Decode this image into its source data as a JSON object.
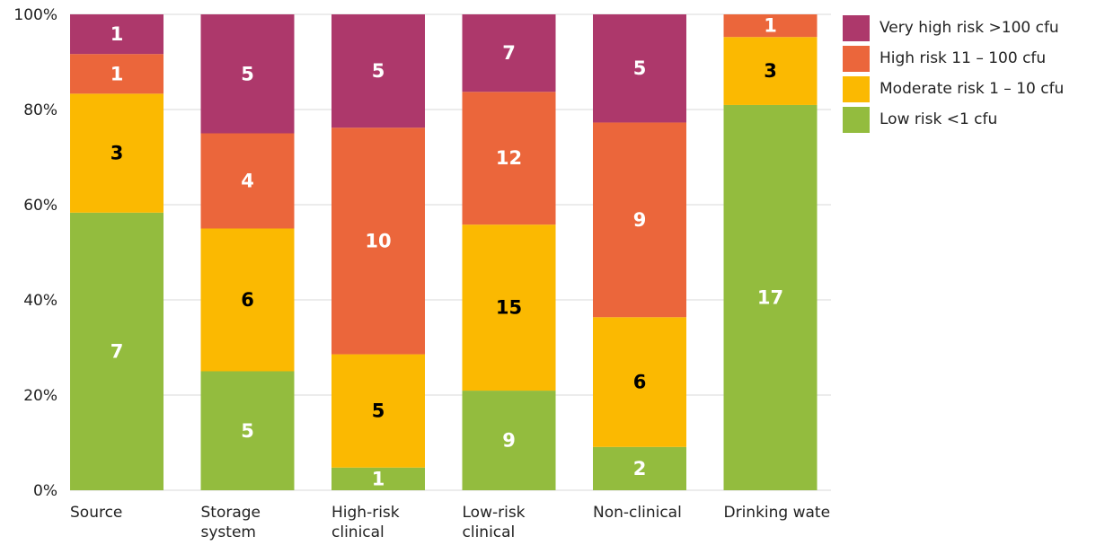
{
  "chart_data": {
    "type": "bar",
    "stacked": "percent",
    "categories": [
      [
        "Source"
      ],
      [
        "Storage",
        "system"
      ],
      [
        "High-risk",
        "clinical"
      ],
      [
        "Low-risk",
        "clinical"
      ],
      [
        "Non-clinical"
      ],
      [
        "Drinking water"
      ]
    ],
    "series": [
      {
        "name": "Low risk <1 cfu",
        "color": "#93bc3e",
        "label_color": "#ffffff",
        "values": [
          7,
          5,
          1,
          9,
          2,
          17
        ]
      },
      {
        "name": "Moderate risk 1 – 10 cfu",
        "color": "#fbb901",
        "label_color": "#000000",
        "values": [
          3,
          6,
          5,
          15,
          6,
          3
        ]
      },
      {
        "name": "High risk 11 – 100 cfu",
        "color": "#eb663b",
        "label_color": "#ffffff",
        "values": [
          1,
          4,
          10,
          12,
          9,
          1
        ]
      },
      {
        "name": "Very high risk >100 cfu",
        "color": "#ad386b",
        "label_color": "#ffffff",
        "values": [
          1,
          5,
          5,
          7,
          5,
          0
        ]
      }
    ],
    "legend_order": [
      3,
      2,
      1,
      0
    ],
    "legend_position": "top-right",
    "yticks": [
      "0%",
      "20%",
      "40%",
      "60%",
      "80%",
      "100%"
    ],
    "ylim": [
      0,
      100
    ],
    "grid": true
  }
}
